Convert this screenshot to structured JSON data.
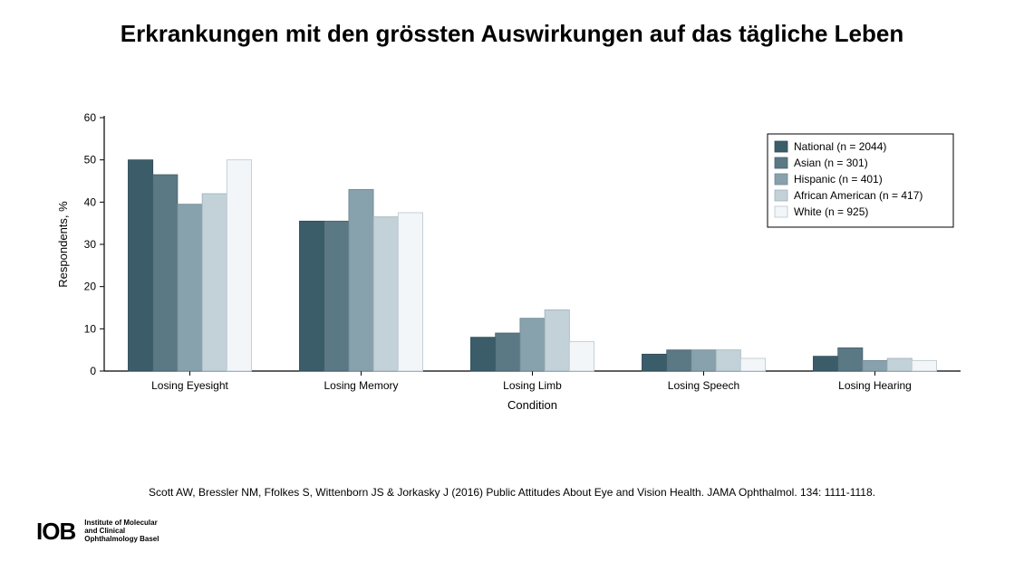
{
  "title": "Erkrankungen mit den grössten Auswirkungen auf das tägliche Leben",
  "citation": "Scott AW, Bressler NM, Ffolkes S, Wittenborn JS & Jorkasky J (2016) Public Attitudes About Eye and Vision Health. JAMA Ophthalmol. 134: 1111-1118.",
  "footer": {
    "logo_mark": "IOB",
    "line1": "Institute of Molecular",
    "line2": "and Clinical",
    "line3": "Ophthalmology Basel"
  },
  "chart": {
    "type": "bar",
    "xlabel": "Condition",
    "ylabel": "Respondents, %",
    "ylim": [
      0,
      60
    ],
    "ytick_step": 10,
    "categories": [
      "Losing Eyesight",
      "Losing Memory",
      "Losing Limb",
      "Losing Speech",
      "Losing Hearing"
    ],
    "series": [
      {
        "name": "National (n = 2044)",
        "color": "#3b5d6a",
        "stroke": "#2e4a55",
        "values": [
          50,
          35.5,
          8,
          4,
          3.5
        ]
      },
      {
        "name": "Asian (n = 301)",
        "color": "#5b7885",
        "stroke": "#48616c",
        "values": [
          46.5,
          35.5,
          9,
          5,
          5.5
        ]
      },
      {
        "name": "Hispanic (n = 401)",
        "color": "#88a2ad",
        "stroke": "#6e8893",
        "values": [
          39.5,
          43,
          12.5,
          5,
          2.5
        ]
      },
      {
        "name": "African American (n = 417)",
        "color": "#c3d1d8",
        "stroke": "#9fb1ba",
        "values": [
          42,
          36.5,
          14.5,
          5,
          3
        ]
      },
      {
        "name": "White (n = 925)",
        "color": "#f2f6f8",
        "stroke": "#b9c6cd",
        "values": [
          50,
          37.5,
          7,
          3,
          2.5
        ]
      }
    ],
    "axis_color": "#000000",
    "tick_color": "#000000",
    "background_color": "#ffffff",
    "label_fontsize": 13,
    "tick_fontsize": 12,
    "legend_fontsize": 12,
    "legend_box_stroke": "#000000",
    "bar_group_width": 0.72,
    "bar_gap": 0
  }
}
